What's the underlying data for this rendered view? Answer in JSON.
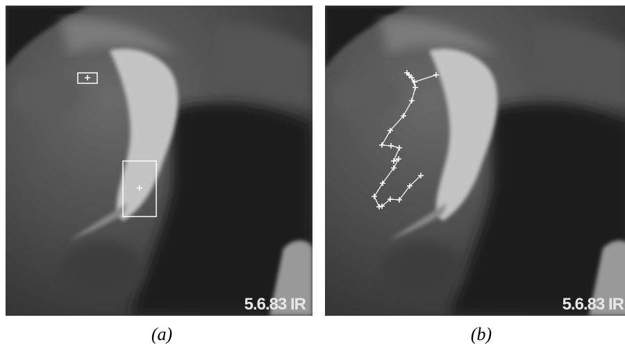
{
  "panels": [
    {
      "stamp": "5.6.83 IR",
      "caption": "(a)"
    },
    {
      "stamp": "5.6.83 IR",
      "caption": "(b)"
    }
  ]
}
